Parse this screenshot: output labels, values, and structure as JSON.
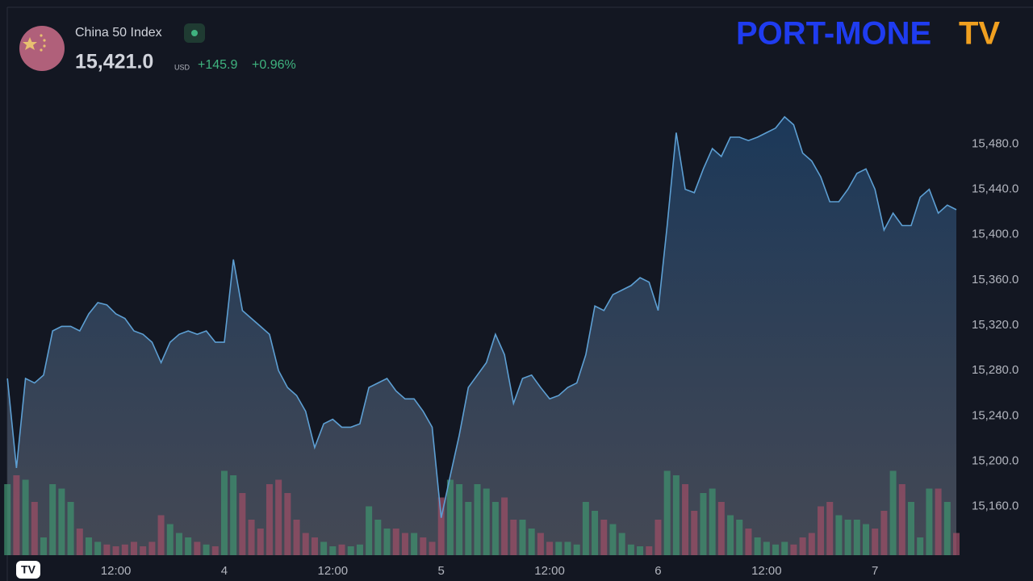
{
  "header": {
    "symbol": "China 50 Index",
    "price": "15,421.0",
    "currency": "USD",
    "change": "+145.9",
    "change_percent": "+0.96%"
  },
  "logo": [
    "PORT-MONE",
    "TV"
  ],
  "chart_data": {
    "type": "line",
    "color": "#5d9fd3",
    "volume_up_color": "#3f8f6e",
    "volume_down_color": "#9a4d66",
    "x": [
      0,
      1,
      2,
      3,
      4,
      5,
      6,
      7,
      8,
      9,
      10,
      11,
      12,
      13,
      14,
      15,
      16,
      17,
      18,
      19,
      20,
      21,
      22,
      23,
      24,
      25,
      26,
      27,
      28,
      29,
      30,
      31,
      32,
      33,
      34,
      35,
      36,
      37,
      38,
      39,
      40,
      41,
      42,
      43,
      44,
      45,
      46,
      47,
      48,
      49,
      50,
      51,
      52,
      53,
      54,
      55,
      56,
      57,
      58,
      59,
      60,
      61,
      62,
      63,
      64,
      65,
      66,
      67,
      68,
      69,
      70,
      71,
      72,
      73,
      74,
      75,
      76,
      77,
      78,
      79,
      80,
      81,
      82,
      83,
      84,
      85,
      86,
      87,
      88,
      89,
      90,
      91,
      92,
      93,
      94,
      95,
      96,
      97,
      98,
      99,
      100,
      101,
      102,
      103,
      104,
      105
    ],
    "values": [
      15273,
      15194,
      15273,
      15269,
      15276,
      15315,
      15319,
      15319,
      15315,
      15330,
      15340,
      15338,
      15330,
      15326,
      15315,
      15312,
      15305,
      15287,
      15305,
      15312,
      15315,
      15312,
      15315,
      15305,
      15305,
      15378,
      15333,
      15326,
      15319,
      15312,
      15280,
      15265,
      15258,
      15244,
      15212,
      15233,
      15237,
      15230,
      15230,
      15233,
      15265,
      15269,
      15273,
      15262,
      15255,
      15255,
      15244,
      15230,
      15150,
      15187,
      15223,
      15265,
      15276,
      15287,
      15312,
      15294,
      15251,
      15273,
      15276,
      15265,
      15255,
      15258,
      15265,
      15269,
      15294,
      15337,
      15333,
      15347,
      15351,
      15355,
      15362,
      15358,
      15333,
      15408,
      15490,
      15440,
      15437,
      15458,
      15476,
      15469,
      15486,
      15486,
      15483,
      15486,
      15490,
      15494,
      15504,
      15497,
      15472,
      15465,
      15451,
      15429,
      15429,
      15440,
      15454,
      15458,
      15440,
      15404,
      15419,
      15408,
      15408,
      15433,
      15440,
      15419,
      15426,
      15422
    ],
    "volumes": [
      80,
      90,
      85,
      60,
      20,
      80,
      75,
      60,
      30,
      20,
      15,
      12,
      10,
      12,
      15,
      10,
      15,
      45,
      35,
      25,
      20,
      15,
      12,
      10,
      95,
      90,
      70,
      40,
      30,
      80,
      85,
      70,
      40,
      25,
      20,
      15,
      10,
      12,
      10,
      12,
      55,
      40,
      30,
      30,
      25,
      25,
      20,
      15,
      65,
      85,
      80,
      60,
      80,
      75,
      60,
      65,
      40,
      40,
      30,
      25,
      15,
      15,
      15,
      12,
      60,
      50,
      40,
      35,
      25,
      12,
      10,
      10,
      40,
      95,
      90,
      80,
      50,
      70,
      75,
      60,
      45,
      40,
      30,
      20,
      15,
      12,
      15,
      12,
      20,
      25,
      55,
      60,
      45,
      40,
      40,
      35,
      30,
      50,
      95,
      80,
      60,
      20,
      75,
      75,
      60,
      25
    ],
    "xlim": [
      0,
      105
    ],
    "ylim": [
      15117,
      15600
    ],
    "xticks": [
      {
        "value": 12,
        "label": "12:00"
      },
      {
        "value": 24,
        "label": "4"
      },
      {
        "value": 36,
        "label": "12:00"
      },
      {
        "value": 48,
        "label": "5"
      },
      {
        "value": 60,
        "label": "12:00"
      },
      {
        "value": 72,
        "label": "6"
      },
      {
        "value": 84,
        "label": "12:00"
      },
      {
        "value": 96,
        "label": "7"
      }
    ],
    "yticks": [
      {
        "value": 15160,
        "label": "15,160.0"
      },
      {
        "value": 15200,
        "label": "15,200.0"
      },
      {
        "value": 15240,
        "label": "15,240.0"
      },
      {
        "value": 15280,
        "label": "15,280.0"
      },
      {
        "value": 15320,
        "label": "15,320.0"
      },
      {
        "value": 15360,
        "label": "15,360.0"
      },
      {
        "value": 15400,
        "label": "15,400.0"
      },
      {
        "value": 15440,
        "label": "15,440.0"
      },
      {
        "value": 15480,
        "label": "15,480.0"
      }
    ]
  }
}
